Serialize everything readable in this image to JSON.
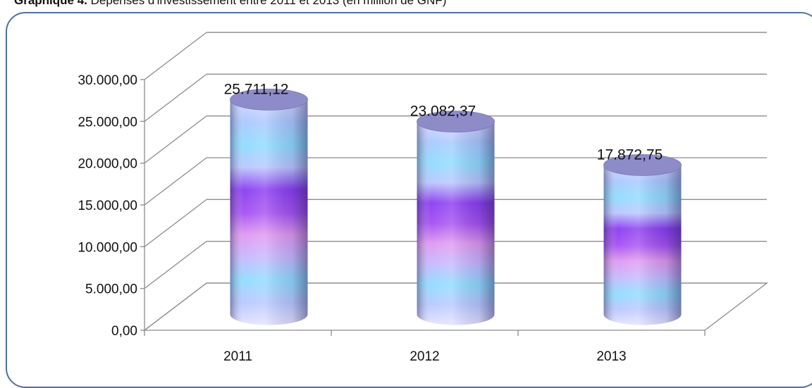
{
  "caption": {
    "bold": "Graphique 4.",
    "rest": "Dépenses d'investissement entre 2011 et 2013 (en million de GNF)"
  },
  "chart_data": {
    "type": "bar",
    "style": "3d-cylinder",
    "title": "",
    "xlabel": "",
    "ylabel": "",
    "categories": [
      "2011",
      "2012",
      "2013"
    ],
    "values": [
      25711.12,
      23082.37,
      17872.75
    ],
    "value_labels": [
      "25.711,12",
      "23.082,37",
      "17.872,75"
    ],
    "ylim": [
      0,
      30000
    ],
    "yticks": [
      0,
      5000,
      10000,
      15000,
      20000,
      25000,
      30000
    ],
    "ytick_labels": [
      "0,00",
      "5.000,00",
      "10.000,00",
      "15.000,00",
      "20.000,00",
      "25.000,00",
      "30.000,00"
    ],
    "grid": true,
    "legend": "none",
    "colors": {
      "bar_gradient": [
        "#d8d6ff",
        "#a9c8ff",
        "#8fdcff",
        "#b9c6ff",
        "#8a3cf0",
        "#a44ff2",
        "#e098f0",
        "#c6b8ff",
        "#8fdcff",
        "#b8c8ff",
        "#e6e2ff"
      ],
      "bar_top": "#8e8cc8",
      "grid": "#8c8c8c",
      "frame": "#4f6fa3"
    }
  }
}
